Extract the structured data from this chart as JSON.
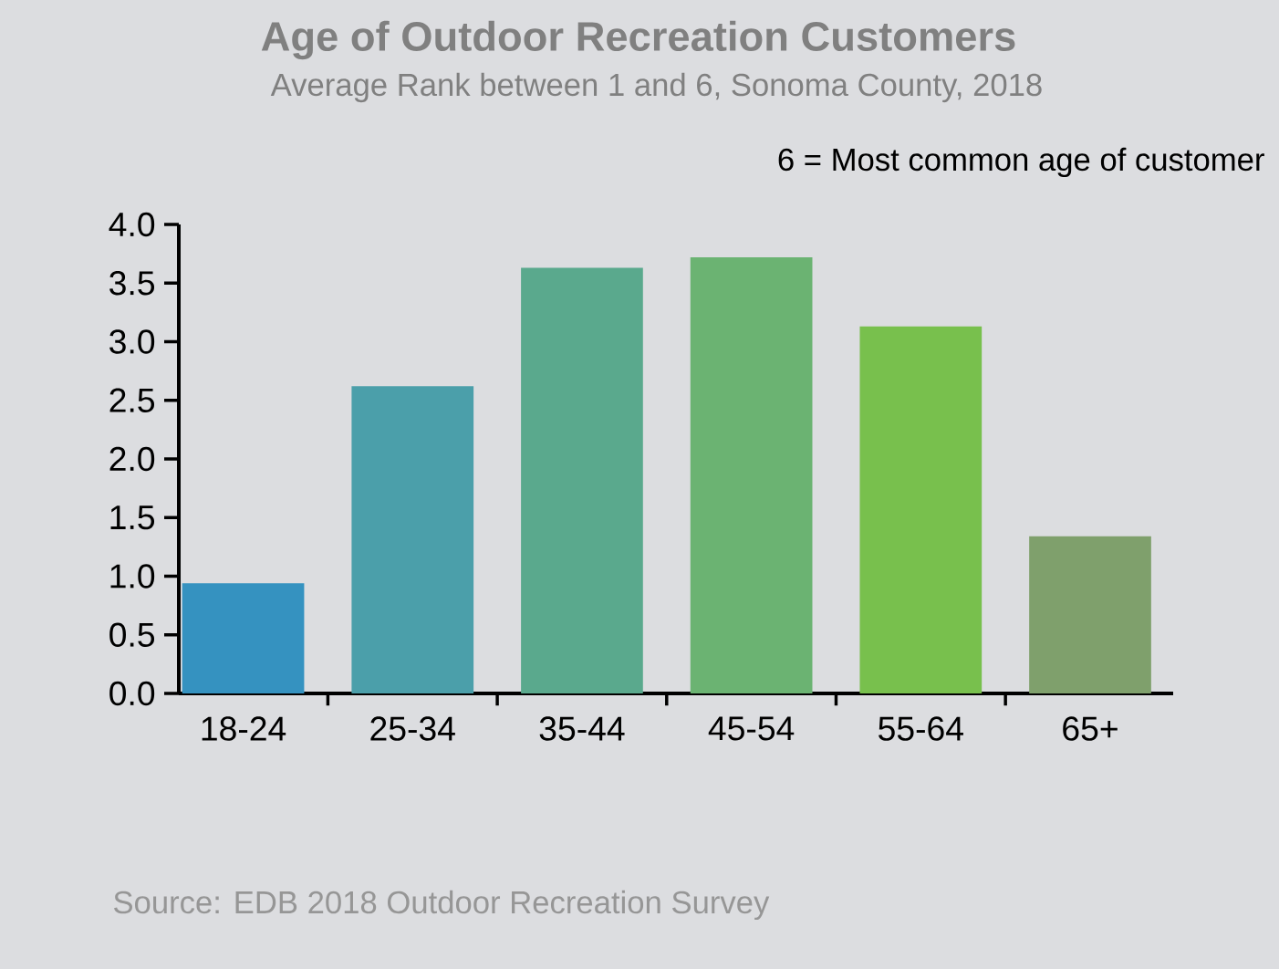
{
  "chart_data": {
    "type": "bar",
    "title": "Age of Outdoor Recreation Customers",
    "subtitle": "Average Rank between 1 and 6, Sonoma County, 2018",
    "categories": [
      "18-24",
      "25-34",
      "35-44",
      "45-54",
      "55-64",
      "65+"
    ],
    "values": [
      0.94,
      2.62,
      3.63,
      3.72,
      3.13,
      1.34
    ],
    "colors": [
      "#3592c0",
      "#4b9faa",
      "#5aa98d",
      "#6bb372",
      "#78c04d",
      "#7fa06c"
    ],
    "ylim": [
      0,
      4
    ],
    "yticks": [
      {
        "value": 0,
        "label": "0.0"
      },
      {
        "value": 0.5,
        "label": "0.5"
      },
      {
        "value": 1,
        "label": "1.0"
      },
      {
        "value": 1.5,
        "label": "1.5"
      },
      {
        "value": 2,
        "label": "2.0"
      },
      {
        "value": 2.5,
        "label": "2.5"
      },
      {
        "value": 3,
        "label": "3.0"
      },
      {
        "value": 3.5,
        "label": "3.5"
      },
      {
        "value": 4,
        "label": "4.0"
      }
    ],
    "annotations": [
      "6 = Most common age of customer",
      "Source: EDB 2018 Outdoor Recreation Survey"
    ]
  }
}
